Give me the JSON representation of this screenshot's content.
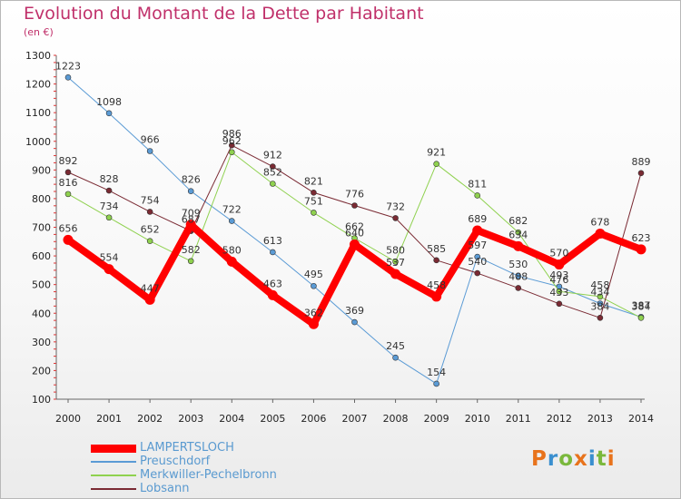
{
  "title": "Evolution du Montant de la Dette par Habitant",
  "subtitle": "(en €)",
  "logo": {
    "text": "Proxiti",
    "colors": [
      "#e8731c",
      "#3a8fcf",
      "#7ab83c",
      "#e8731c",
      "#3a8fcf",
      "#7ab83c",
      "#e8731c"
    ]
  },
  "chart_data": {
    "type": "line",
    "x": [
      "2000",
      "2001",
      "2002",
      "2003",
      "2004",
      "2005",
      "2006",
      "2007",
      "2008",
      "2009",
      "2010",
      "2011",
      "2012",
      "2013",
      "2014"
    ],
    "ylim": [
      100,
      1300
    ],
    "yticks": [
      100,
      200,
      300,
      400,
      500,
      600,
      700,
      800,
      900,
      1000,
      1100,
      1200,
      1300
    ],
    "grid": false,
    "legend_position": "bottom-left",
    "series": [
      {
        "name": "LAMPERTSLOCH",
        "color": "#ff0000",
        "width": 8,
        "values": [
          656,
          554,
          447,
          709,
          580,
          463,
          362,
          640,
          537,
          458,
          689,
          634,
          570,
          678,
          623
        ],
        "labels": [
          "656",
          "554",
          "447",
          "709",
          "580",
          "463",
          "362",
          "640",
          "537",
          "458",
          "689",
          "634",
          "570",
          "678",
          "623"
        ]
      },
      {
        "name": "Preuschdorf",
        "color": "#5b9bd5",
        "width": 1,
        "values": [
          1223,
          1098,
          966,
          826,
          722,
          613,
          495,
          369,
          245,
          154,
          597,
          530,
          493,
          434,
          387
        ],
        "labels": [
          "1223",
          "1098",
          "966",
          "826",
          "722",
          "613",
          "495",
          "369",
          "245",
          "154",
          "597",
          "530",
          "493",
          "434",
          "387"
        ]
      },
      {
        "name": "Merkwiller-Pechelbronn",
        "color": "#8fd14f",
        "width": 1,
        "values": [
          816,
          734,
          652,
          582,
          962,
          852,
          751,
          662,
          580,
          921,
          811,
          682,
          476,
          458,
          384
        ],
        "labels": [
          "816",
          "734",
          "652",
          "582",
          "962",
          "852",
          "751",
          "662",
          "580",
          "921",
          "811",
          "682",
          "476",
          "458",
          "384"
        ]
      },
      {
        "name": "Lobsann",
        "color": "#7a2a33",
        "width": 1,
        "values": [
          892,
          828,
          754,
          687,
          986,
          912,
          821,
          776,
          732,
          585,
          540,
          488,
          433,
          384,
          889
        ],
        "labels": [
          "892",
          "828",
          "754",
          "687",
          "986",
          "912",
          "821",
          "776",
          "732",
          "585",
          "540",
          "488",
          "433",
          "384",
          "889"
        ]
      }
    ]
  }
}
